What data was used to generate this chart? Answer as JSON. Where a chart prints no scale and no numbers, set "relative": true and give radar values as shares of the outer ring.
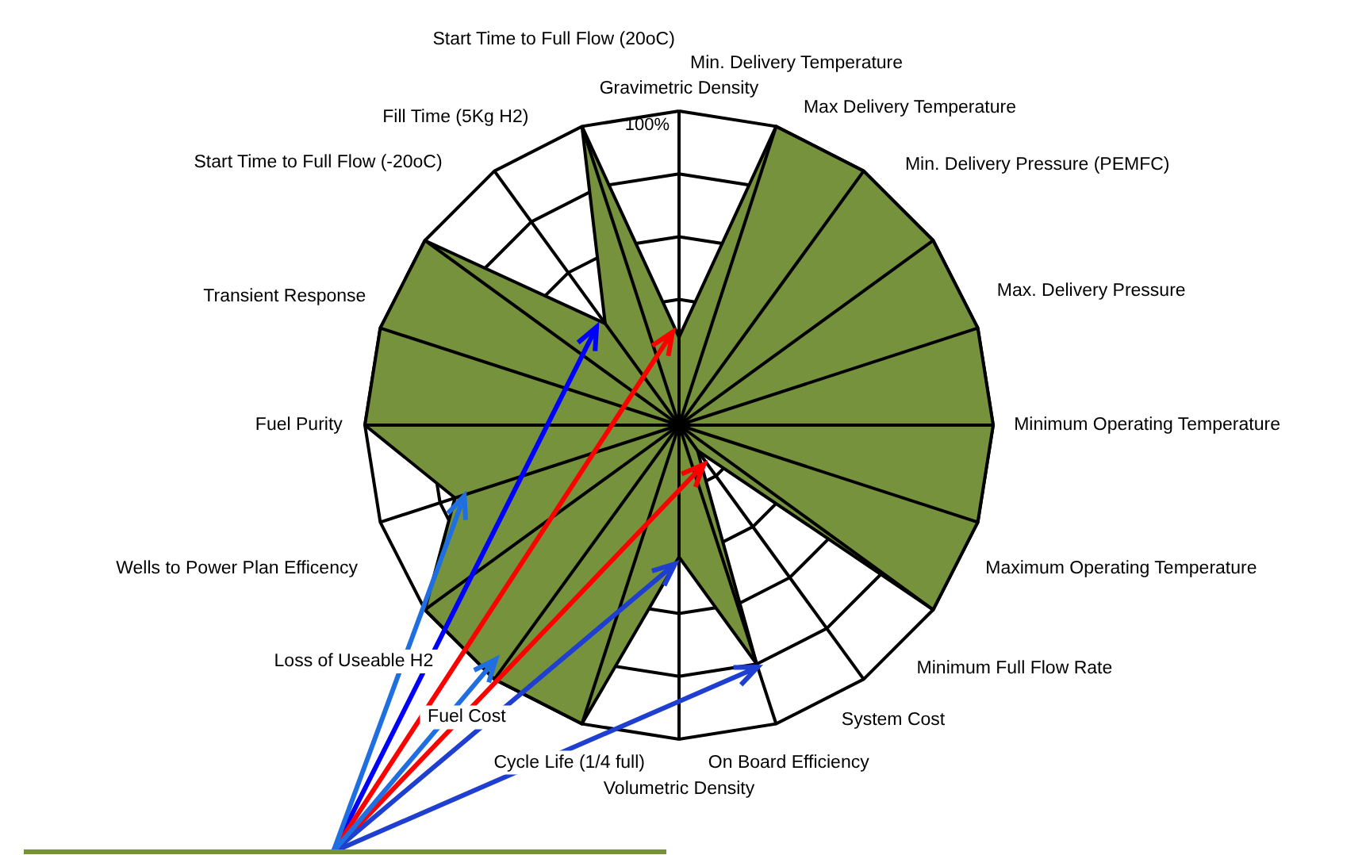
{
  "chart_data": {
    "type": "radar",
    "relative": true,
    "grid": true,
    "legend": false,
    "categories": [
      "Gravimetric Density",
      "Min. Delivery Temperature",
      "Max Delivery Temperature",
      "Min. Delivery Pressure (PEMFC)",
      "Max. Delivery Pressure",
      "Minimum Operating Temperature",
      "Maximum Operating Temperature",
      "Minimum Full Flow Rate",
      "System Cost",
      "On Board Efficiency",
      "Volumetric Density",
      "Cycle Life (1/4 full)",
      "Fuel Cost",
      "Loss of Useable H2",
      "Wells to Power Plan Efficency",
      "Fuel Purity",
      "Transient Response",
      "Start Time to Full Flow (-20oC)",
      "Fill Time (5Kg H2)",
      "Start Time to Full Flow (20oC)"
    ],
    "series": [
      {
        "color": "#76923c",
        "values": [
          0.28,
          1,
          1,
          1,
          1,
          1,
          1,
          1,
          0.1,
          0.8,
          0.42,
          1,
          1,
          1,
          0.75,
          1,
          1,
          1,
          0.4,
          1
        ]
      }
    ],
    "annotations": [
      "100%"
    ]
  }
}
